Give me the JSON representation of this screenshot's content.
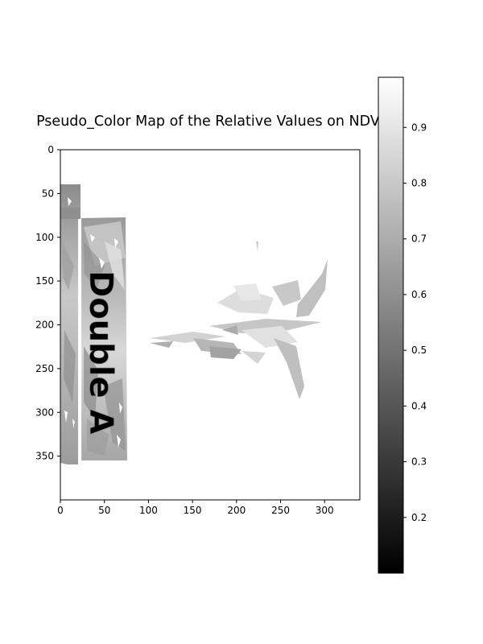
{
  "chart_data": {
    "type": "heatmap",
    "title": "Pseudo_Color Map of the Relative Values on NDVI",
    "xlabel": "",
    "ylabel": "",
    "xlim": [
      0,
      340
    ],
    "ylim": [
      400,
      0
    ],
    "xticks": [
      0,
      50,
      100,
      150,
      200,
      250,
      300
    ],
    "yticks": [
      0,
      50,
      100,
      150,
      200,
      250,
      300,
      350
    ],
    "colormap": "gray",
    "colorbar": {
      "range": [
        0.1,
        0.99
      ],
      "ticks": [
        0.2,
        0.3,
        0.4,
        0.5,
        0.6,
        0.7,
        0.8,
        0.9
      ],
      "tick_labels": [
        "0.2",
        "0.3",
        "0.4",
        "0.5",
        "0.6",
        "0.7",
        "0.8",
        "0.9"
      ]
    },
    "annotations": [
      "Double A"
    ],
    "x_tick_labels": [
      "0",
      "50",
      "100",
      "150",
      "200",
      "250",
      "300"
    ],
    "y_tick_labels": [
      "0",
      "50",
      "100",
      "150",
      "200",
      "250",
      "300",
      "350"
    ]
  }
}
